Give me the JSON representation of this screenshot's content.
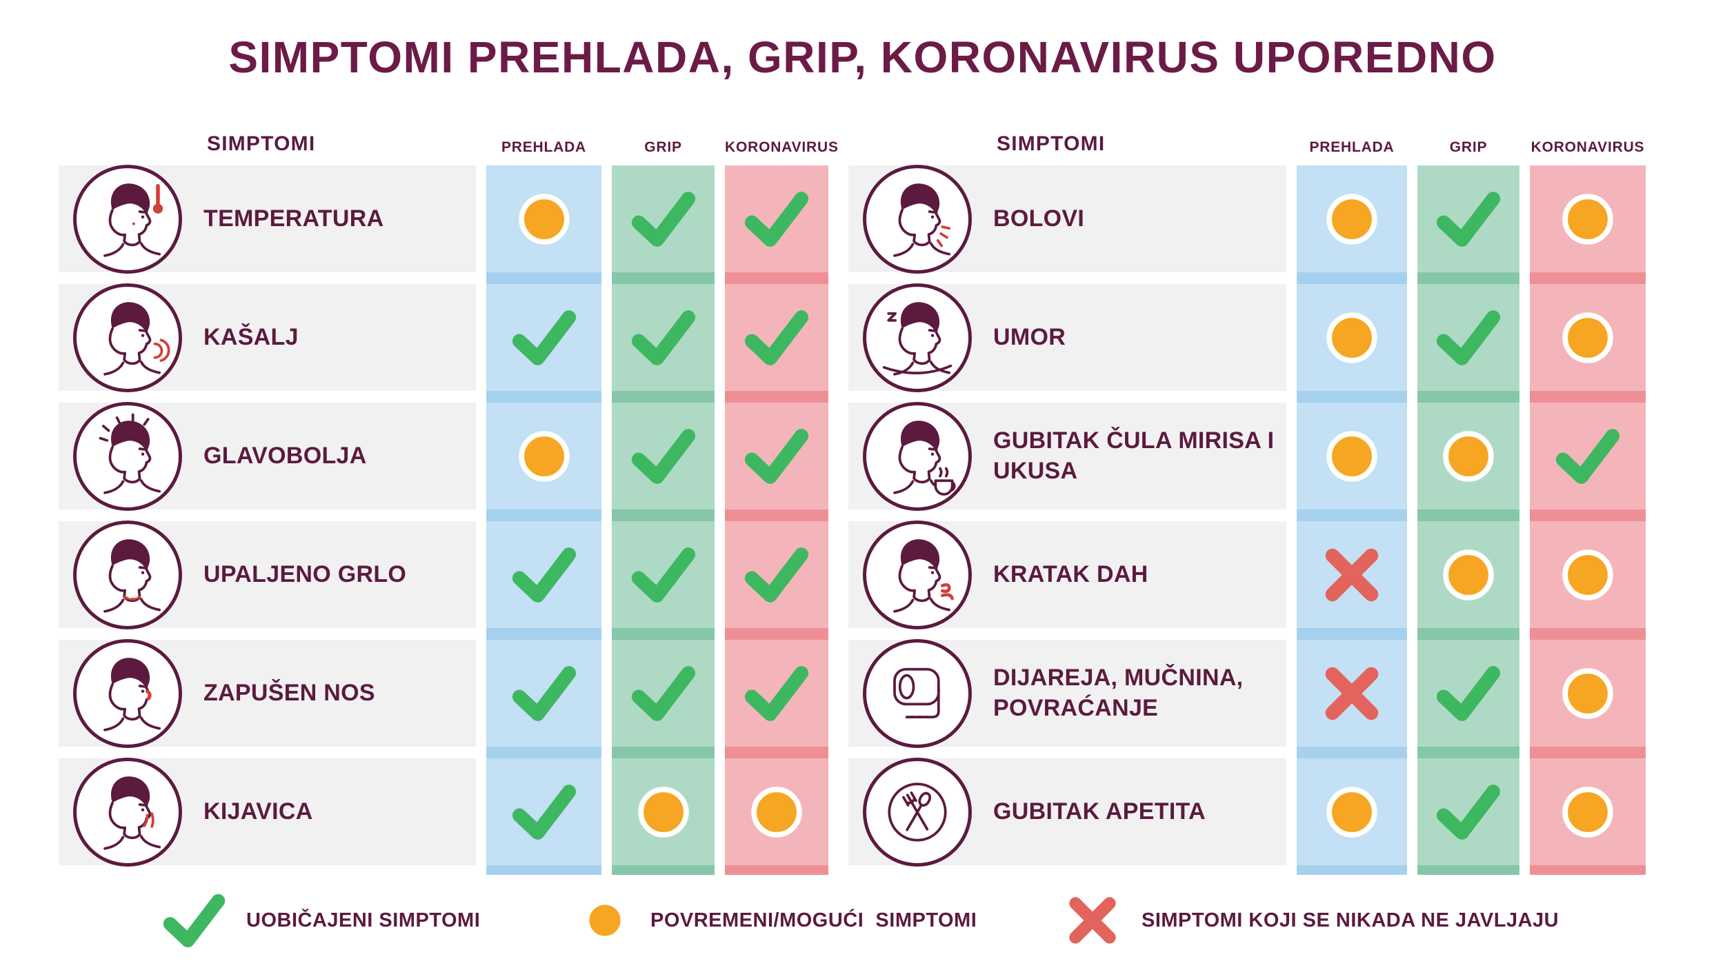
{
  "title": "SIMPTOMI PREHLADA, GRIP, KORONAVIRUS UPOREDNO",
  "columns": {
    "symptom": "SIMPTOMI",
    "cold": "PREHLADA",
    "flu": "GRIP",
    "covid": "KORONAVIRUS"
  },
  "left": {
    "rows": [
      {
        "label": "TEMPERATURA",
        "icon": "fever-face-icon",
        "cells": [
          "dot",
          "check",
          "check"
        ]
      },
      {
        "label": "KAŠALJ",
        "icon": "cough-face-icon",
        "cells": [
          "check",
          "check",
          "check"
        ]
      },
      {
        "label": "GLAVOBOLJA",
        "icon": "headache-face-icon",
        "cells": [
          "dot",
          "check",
          "check"
        ]
      },
      {
        "label": "UPALJENO GRLO",
        "icon": "sore-throat-face-icon",
        "cells": [
          "check",
          "check",
          "check"
        ]
      },
      {
        "label": "ZAPUŠEN NOS",
        "icon": "stuffy-nose-face-icon",
        "cells": [
          "check",
          "check",
          "check"
        ]
      },
      {
        "label": "KIJAVICA",
        "icon": "runny-nose-face-icon",
        "cells": [
          "check",
          "dot",
          "dot"
        ]
      }
    ]
  },
  "right": {
    "rows": [
      {
        "label": "BOLOVI",
        "icon": "body-aches-face-icon",
        "cells": [
          "dot",
          "check",
          "dot"
        ]
      },
      {
        "label": "UMOR",
        "icon": "fatigue-face-icon",
        "cells": [
          "dot",
          "check",
          "dot"
        ]
      },
      {
        "label": "GUBITAK ČULA MIRISA I UKUSA",
        "icon": "smell-taste-loss-face-icon",
        "cells": [
          "dot",
          "dot",
          "check"
        ]
      },
      {
        "label": "KRATAK DAH",
        "icon": "short-breath-face-icon",
        "cells": [
          "cross",
          "dot",
          "dot"
        ]
      },
      {
        "label": "DIJAREJA, MUČNINA, POVRAĆANJE",
        "icon": "toilet-paper-icon",
        "cells": [
          "cross",
          "check",
          "dot"
        ]
      },
      {
        "label": "GUBITAK APETITA",
        "icon": "no-appetite-icon",
        "cells": [
          "dot",
          "check",
          "dot"
        ]
      }
    ]
  },
  "legend": [
    {
      "symbol": "check",
      "label": "UOBIČAJENI SIMPTOMI"
    },
    {
      "symbol": "dot",
      "label": "POVREMENI/MOGUĆI  SIMPTOMI"
    },
    {
      "symbol": "cross",
      "label": "SIMPTOMI KOJI SE NIKADA NE JAVLJAJU"
    }
  ],
  "colors": {
    "title": "#6b1b46",
    "text": "#5c1a3e",
    "line": "#5c1a3e",
    "accent": "#cf4038",
    "check": "#3eb761",
    "dot": "#f6a623",
    "cross": "#e2645c",
    "band_cold": "#a5d1ee",
    "band_flu": "#85c7a8",
    "band_covid": "#ee8f96",
    "row_stripe": "#f1f1f2"
  }
}
